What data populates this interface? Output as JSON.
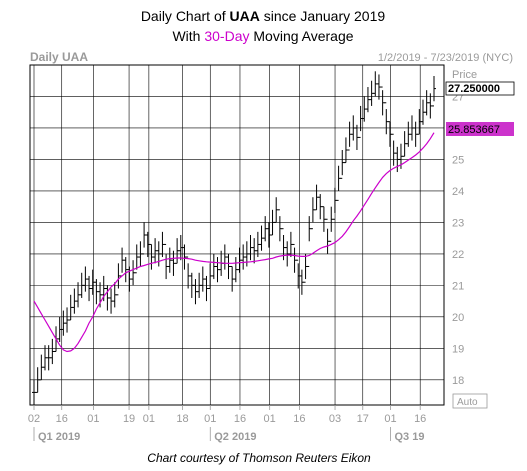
{
  "header": {
    "title_line1_prefix": "Daily Chart of ",
    "title_line1_ticker": "UAA",
    "title_line1_suffix": " since January 2019",
    "title_line2_prefix": "With ",
    "title_line2_accent": "30-Day",
    "title_line2_suffix": " Moving Average",
    "panel_label": "Daily UAA",
    "date_range": "1/2/2019 - 7/23/2019 (NYC)",
    "price_header": "Price",
    "auto_label": "Auto"
  },
  "caption": "Chart courtesy of Thomson Reuters Eikon",
  "colors": {
    "ma_line": "#cc00cc",
    "ma_box": "#cc33cc",
    "bars": "#000000",
    "grid": "#000000"
  },
  "chart_data": {
    "type": "line",
    "ticker": "UAA",
    "ylim": [
      17.2,
      28.0
    ],
    "y_ticks": [
      18,
      19,
      20,
      21,
      22,
      23,
      24,
      25,
      26,
      27
    ],
    "y_tick_labels": [
      "18",
      "19",
      "20",
      "21",
      "22",
      "23",
      "24",
      "25",
      "26",
      "27"
    ],
    "x_ticks": [
      {
        "label": "02",
        "date": "2019-01-02"
      },
      {
        "label": "16",
        "date": "2019-01-16"
      },
      {
        "label": "01",
        "date": "2019-02-01"
      },
      {
        "label": "19",
        "date": "2019-02-19"
      },
      {
        "label": "01",
        "date": "2019-03-01"
      },
      {
        "label": "18",
        "date": "2019-03-18"
      },
      {
        "label": "01",
        "date": "2019-04-01"
      },
      {
        "label": "16",
        "date": "2019-04-16"
      },
      {
        "label": "01",
        "date": "2019-05-01"
      },
      {
        "label": "16",
        "date": "2019-05-16"
      },
      {
        "label": "03",
        "date": "2019-06-03"
      },
      {
        "label": "17",
        "date": "2019-06-17"
      },
      {
        "label": "01",
        "date": "2019-07-01"
      },
      {
        "label": "16",
        "date": "2019-07-16"
      }
    ],
    "periods": [
      {
        "label": "Q1 2019",
        "start": "2019-01-02",
        "end": "2019-03-29"
      },
      {
        "label": "Q2 2019",
        "start": "2019-04-01",
        "end": "2019-06-28"
      },
      {
        "label": "Q3 19",
        "start": "2019-07-01",
        "end": "2019-07-23"
      }
    ],
    "series": [
      {
        "name": "Price",
        "last_value": "27.250000",
        "values": [
          17.6,
          18.0,
          18.4,
          18.7,
          18.7,
          18.9,
          19.3,
          19.6,
          19.8,
          19.9,
          20.3,
          20.5,
          20.7,
          21.0,
          21.2,
          20.9,
          21.1,
          20.8,
          20.7,
          20.9,
          20.6,
          20.5,
          20.7,
          21.3,
          21.8,
          21.5,
          21.2,
          21.4,
          21.9,
          22.0,
          22.6,
          22.3,
          21.9,
          22.1,
          22.0,
          22.3,
          21.6,
          21.8,
          21.7,
          22.1,
          22.2,
          21.9,
          21.3,
          21.0,
          20.8,
          21.0,
          21.2,
          20.9,
          21.3,
          21.6,
          21.5,
          21.7,
          21.9,
          21.6,
          21.2,
          21.5,
          21.8,
          21.9,
          22.0,
          22.2,
          22.1,
          22.3,
          22.5,
          22.8,
          22.6,
          23.0,
          23.4,
          22.8,
          22.2,
          22.0,
          22.3,
          21.8,
          21.3,
          21.1,
          21.6,
          22.8,
          23.4,
          23.8,
          23.5,
          23.1,
          22.4,
          23.1,
          23.7,
          24.4,
          24.9,
          25.3,
          25.8,
          26.0,
          25.7,
          26.3,
          26.6,
          26.9,
          27.1,
          27.4,
          27.3,
          26.8,
          26.2,
          25.8,
          25.2,
          25.0,
          25.1,
          25.5,
          25.8,
          26.0,
          25.8,
          26.2,
          26.5,
          26.8,
          26.7,
          27.25
        ],
        "low_values": [
          17.2,
          17.6,
          18.0,
          18.3,
          18.3,
          18.5,
          18.9,
          19.2,
          19.4,
          19.5,
          19.9,
          20.1,
          20.3,
          20.6,
          20.8,
          20.5,
          20.7,
          20.4,
          20.3,
          20.5,
          20.2,
          20.1,
          20.3,
          20.9,
          21.4,
          21.1,
          20.8,
          21.0,
          21.5,
          21.6,
          22.2,
          21.9,
          21.5,
          21.7,
          21.6,
          21.9,
          21.2,
          21.4,
          21.3,
          21.7,
          21.8,
          21.5,
          20.9,
          20.6,
          20.4,
          20.6,
          20.8,
          20.5,
          20.9,
          21.2,
          21.1,
          21.3,
          21.5,
          21.2,
          20.8,
          21.1,
          21.4,
          21.5,
          21.6,
          21.8,
          21.7,
          21.9,
          22.1,
          22.4,
          22.2,
          22.6,
          23.0,
          22.4,
          21.8,
          21.6,
          21.9,
          21.4,
          20.9,
          20.7,
          21.2,
          22.4,
          23.0,
          23.4,
          23.1,
          22.7,
          22.0,
          22.7,
          23.3,
          24.0,
          24.5,
          24.9,
          25.4,
          25.6,
          25.3,
          25.9,
          26.2,
          26.5,
          26.7,
          27.0,
          26.9,
          26.4,
          25.8,
          25.4,
          24.8,
          24.6,
          24.7,
          25.1,
          25.4,
          25.6,
          25.4,
          25.8,
          26.1,
          26.4,
          26.3,
          26.85
        ],
        "high_values": [
          18.0,
          18.4,
          18.8,
          19.1,
          19.1,
          19.3,
          19.7,
          20.0,
          20.2,
          20.3,
          20.7,
          20.9,
          21.1,
          21.4,
          21.6,
          21.3,
          21.5,
          21.2,
          21.1,
          21.3,
          21.0,
          20.9,
          21.1,
          21.7,
          22.2,
          21.9,
          21.6,
          21.8,
          22.3,
          22.4,
          23.0,
          22.7,
          22.3,
          22.5,
          22.4,
          22.7,
          22.0,
          22.2,
          22.1,
          22.5,
          22.6,
          22.3,
          21.7,
          21.4,
          21.2,
          21.4,
          21.6,
          21.3,
          21.7,
          22.0,
          21.9,
          22.1,
          22.3,
          22.0,
          21.6,
          21.9,
          22.2,
          22.3,
          22.4,
          22.6,
          22.5,
          22.7,
          22.9,
          23.2,
          23.0,
          23.4,
          23.8,
          23.2,
          22.6,
          22.4,
          22.7,
          22.2,
          21.7,
          21.5,
          22.0,
          23.2,
          23.8,
          24.2,
          23.9,
          23.5,
          22.8,
          23.5,
          24.1,
          24.8,
          25.3,
          25.7,
          26.2,
          26.4,
          26.1,
          26.7,
          27.0,
          27.3,
          27.5,
          27.8,
          27.7,
          27.2,
          26.6,
          26.2,
          25.6,
          25.4,
          25.5,
          25.9,
          26.2,
          26.4,
          26.2,
          26.6,
          26.9,
          27.2,
          27.1,
          27.65
        ]
      },
      {
        "name": "30-Day Moving Average",
        "last_value": "25.853667",
        "values": [
          20.5,
          20.3,
          20.1,
          19.9,
          19.7,
          19.5,
          19.3,
          19.1,
          18.95,
          18.9,
          18.92,
          19.0,
          19.15,
          19.35,
          19.55,
          19.8,
          20.0,
          20.25,
          20.45,
          20.65,
          20.8,
          20.95,
          21.05,
          21.2,
          21.3,
          21.4,
          21.45,
          21.5,
          21.55,
          21.6,
          21.63,
          21.67,
          21.7,
          21.73,
          21.76,
          21.8,
          21.83,
          21.85,
          21.86,
          21.87,
          21.87,
          21.86,
          21.85,
          21.83,
          21.8,
          21.78,
          21.76,
          21.75,
          21.74,
          21.73,
          21.72,
          21.71,
          21.7,
          21.7,
          21.7,
          21.71,
          21.72,
          21.73,
          21.74,
          21.75,
          21.76,
          21.78,
          21.8,
          21.82,
          21.84,
          21.86,
          21.9,
          21.93,
          21.95,
          21.96,
          21.96,
          21.95,
          21.93,
          21.92,
          21.92,
          21.95,
          22.02,
          22.1,
          22.17,
          22.22,
          22.25,
          22.3,
          22.36,
          22.45,
          22.56,
          22.7,
          22.87,
          23.05,
          23.2,
          23.37,
          23.55,
          23.73,
          23.92,
          24.1,
          24.27,
          24.43,
          24.55,
          24.65,
          24.72,
          24.78,
          24.83,
          24.9,
          24.98,
          25.06,
          25.14,
          25.24,
          25.36,
          25.5,
          25.66,
          25.85
        ]
      }
    ]
  }
}
